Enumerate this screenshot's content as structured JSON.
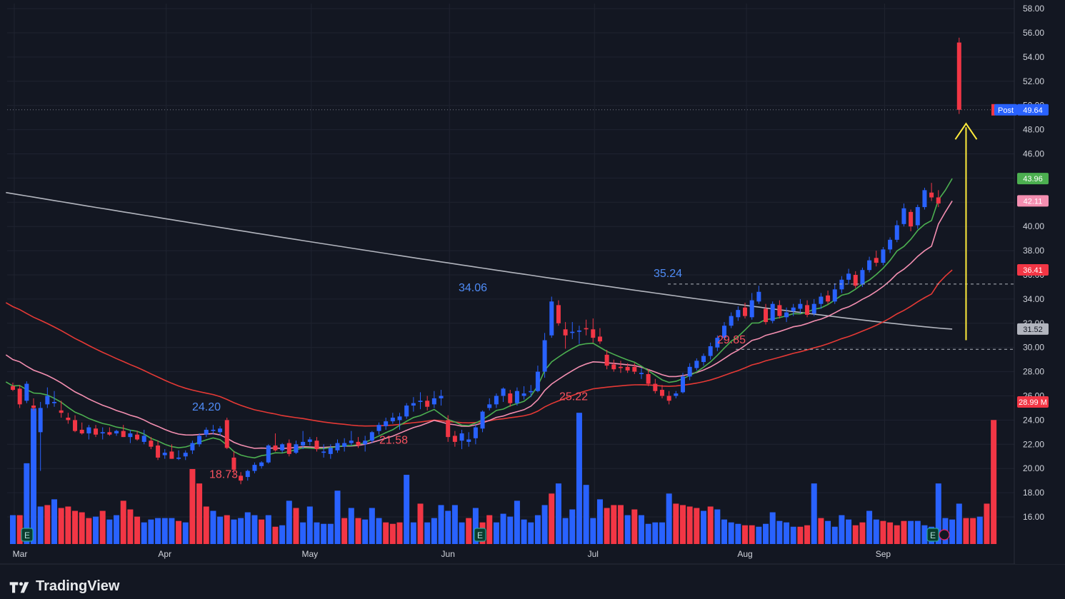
{
  "brand": {
    "name": "TradingView",
    "logo_icon": "tradingview-logo-icon"
  },
  "colors": {
    "background": "#131722",
    "grid": "#1f2330",
    "up": "#2962ff",
    "down": "#f23645",
    "ema_fast": "#4caf50",
    "ema_mid": "#f48fb1",
    "ema_slow": "#e53935",
    "sma_long": "#b2b5be",
    "arrow": "#ffeb3b",
    "post_tag": "#2962ff"
  },
  "chart_data": {
    "type": "candlestick",
    "y_range": [
      14.5,
      59
    ],
    "y_ticks": [
      "16.00",
      "18.00",
      "20.00",
      "22.00",
      "24.00",
      "26.00",
      "28.00",
      "30.00",
      "32.00",
      "34.00",
      "36.00",
      "38.00",
      "40.00",
      "42.00",
      "44.00",
      "46.00",
      "48.00",
      "50.00",
      "52.00",
      "54.00",
      "56.00",
      "58.00"
    ],
    "x_months": [
      {
        "label": "Mar",
        "index": 0
      },
      {
        "label": "Apr",
        "index": 22
      },
      {
        "label": "May",
        "index": 43
      },
      {
        "label": "Jun",
        "index": 63
      },
      {
        "label": "Jul",
        "index": 84
      },
      {
        "label": "Aug",
        "index": 106
      },
      {
        "label": "Sep",
        "index": 126
      }
    ],
    "candles": [
      [
        26.8,
        27.1,
        26.4,
        26.5
      ],
      [
        26.6,
        26.9,
        25.0,
        25.3
      ],
      [
        25.6,
        27.2,
        25.4,
        27.0
      ],
      [
        25.2,
        25.8,
        24.8,
        25.0
      ],
      [
        23.0,
        25.5,
        19.8,
        25.0
      ],
      [
        25.3,
        26.7,
        25.0,
        26.0
      ],
      [
        25.4,
        26.4,
        25.1,
        25.5
      ],
      [
        24.8,
        25.6,
        24.2,
        24.6
      ],
      [
        24.2,
        24.6,
        23.7,
        24.0
      ],
      [
        24.0,
        24.4,
        23.0,
        23.1
      ],
      [
        23.2,
        23.8,
        22.8,
        22.9
      ],
      [
        22.9,
        23.6,
        22.4,
        23.4
      ],
      [
        23.3,
        23.6,
        22.6,
        22.8
      ],
      [
        22.9,
        23.4,
        22.4,
        23.0
      ],
      [
        23.0,
        23.4,
        22.7,
        22.8
      ],
      [
        22.9,
        23.2,
        22.7,
        23.1
      ],
      [
        23.1,
        23.6,
        22.6,
        22.6
      ],
      [
        22.6,
        23.2,
        22.1,
        22.9
      ],
      [
        22.8,
        23.1,
        22.3,
        22.4
      ],
      [
        22.2,
        23.2,
        22.0,
        22.7
      ],
      [
        22.3,
        22.6,
        21.6,
        21.8
      ],
      [
        21.9,
        22.3,
        20.7,
        20.9
      ],
      [
        21.1,
        21.6,
        20.8,
        21.3
      ],
      [
        21.4,
        22.0,
        20.8,
        20.8
      ],
      [
        20.8,
        21.5,
        20.7,
        20.9
      ],
      [
        21.0,
        21.5,
        20.7,
        21.3
      ],
      [
        21.5,
        22.3,
        21.2,
        22.1
      ],
      [
        22.0,
        22.9,
        21.8,
        22.7
      ],
      [
        22.8,
        23.4,
        22.6,
        23.2
      ],
      [
        23.1,
        23.6,
        22.8,
        23.2
      ],
      [
        23.0,
        23.5,
        22.7,
        23.3
      ],
      [
        24.0,
        24.2,
        21.6,
        21.7
      ],
      [
        20.9,
        21.4,
        19.4,
        19.9
      ],
      [
        19.4,
        19.7,
        18.7,
        19.0
      ],
      [
        19.3,
        19.9,
        19.0,
        19.8
      ],
      [
        19.8,
        20.5,
        19.6,
        20.3
      ],
      [
        20.2,
        20.6,
        20.0,
        20.5
      ],
      [
        20.5,
        22.0,
        20.4,
        21.9
      ],
      [
        21.9,
        22.9,
        21.4,
        21.5
      ],
      [
        21.5,
        22.1,
        21.3,
        22.0
      ],
      [
        22.1,
        22.4,
        21.0,
        21.2
      ],
      [
        21.3,
        22.3,
        21.2,
        22.0
      ],
      [
        21.9,
        23.1,
        21.6,
        22.2
      ],
      [
        22.2,
        22.6,
        21.9,
        22.4
      ],
      [
        22.3,
        22.6,
        21.4,
        21.6
      ],
      [
        21.3,
        22.0,
        20.9,
        21.4
      ],
      [
        21.2,
        22.0,
        20.8,
        21.7
      ],
      [
        21.5,
        22.4,
        21.3,
        22.1
      ],
      [
        21.8,
        22.5,
        21.4,
        22.1
      ],
      [
        22.1,
        23.1,
        21.9,
        22.3
      ],
      [
        22.2,
        22.6,
        21.7,
        21.9
      ],
      [
        22.0,
        22.7,
        21.4,
        22.3
      ],
      [
        22.3,
        23.1,
        22.1,
        23.0
      ],
      [
        23.1,
        23.8,
        22.8,
        23.6
      ],
      [
        23.5,
        24.2,
        23.2,
        23.9
      ],
      [
        23.9,
        24.6,
        23.7,
        24.2
      ],
      [
        24.0,
        24.6,
        23.2,
        24.3
      ],
      [
        24.3,
        25.4,
        24.1,
        25.2
      ],
      [
        25.2,
        25.9,
        24.7,
        25.4
      ],
      [
        25.5,
        26.3,
        24.9,
        25.6
      ],
      [
        25.6,
        26.0,
        24.8,
        25.1
      ],
      [
        25.3,
        26.4,
        25.0,
        25.8
      ],
      [
        25.8,
        26.5,
        25.2,
        26.0
      ],
      [
        24.0,
        24.4,
        22.2,
        22.6
      ],
      [
        22.7,
        23.1,
        21.8,
        22.2
      ],
      [
        22.3,
        23.2,
        21.6,
        22.9
      ],
      [
        22.2,
        23.0,
        21.8,
        22.4
      ],
      [
        22.5,
        23.6,
        22.0,
        23.4
      ],
      [
        23.3,
        24.8,
        23.0,
        24.7
      ],
      [
        25.0,
        25.8,
        24.8,
        25.3
      ],
      [
        25.3,
        26.2,
        25.0,
        26.0
      ],
      [
        26.0,
        26.7,
        25.5,
        26.6
      ],
      [
        26.2,
        26.5,
        25.1,
        25.4
      ],
      [
        25.4,
        26.7,
        25.2,
        26.4
      ],
      [
        26.0,
        26.8,
        25.7,
        26.2
      ],
      [
        26.3,
        26.9,
        25.9,
        26.4
      ],
      [
        26.4,
        28.5,
        26.3,
        28.0
      ],
      [
        28.0,
        31.2,
        27.5,
        30.6
      ],
      [
        31.0,
        34.2,
        30.8,
        33.8
      ],
      [
        33.5,
        33.9,
        31.8,
        32.0
      ],
      [
        31.5,
        32.1,
        29.9,
        31.0
      ],
      [
        31.2,
        32.1,
        30.7,
        31.3
      ],
      [
        31.3,
        31.8,
        30.3,
        31.4
      ],
      [
        31.6,
        32.3,
        31.0,
        31.5
      ],
      [
        31.5,
        32.4,
        30.4,
        30.8
      ],
      [
        30.9,
        31.6,
        30.3,
        30.5
      ],
      [
        29.4,
        29.8,
        28.2,
        28.5
      ],
      [
        28.6,
        29.0,
        28.0,
        28.2
      ],
      [
        28.4,
        28.9,
        27.9,
        28.3
      ],
      [
        28.4,
        28.7,
        27.9,
        28.1
      ],
      [
        28.4,
        28.7,
        27.8,
        28.0
      ],
      [
        27.8,
        28.3,
        27.4,
        27.9
      ],
      [
        27.8,
        28.2,
        26.8,
        27.0
      ],
      [
        27.0,
        27.4,
        26.2,
        26.4
      ],
      [
        26.5,
        26.9,
        25.8,
        26.0
      ],
      [
        26.0,
        26.4,
        25.3,
        25.6
      ],
      [
        26.0,
        26.4,
        25.8,
        26.2
      ],
      [
        26.3,
        27.9,
        26.2,
        27.6
      ],
      [
        27.6,
        28.7,
        27.3,
        28.4
      ],
      [
        28.3,
        29.1,
        28.1,
        28.9
      ],
      [
        28.8,
        29.5,
        28.5,
        29.3
      ],
      [
        29.3,
        30.4,
        29.0,
        30.1
      ],
      [
        30.0,
        31.0,
        29.7,
        30.8
      ],
      [
        30.8,
        32.1,
        30.6,
        31.8
      ],
      [
        31.8,
        32.9,
        31.6,
        32.6
      ],
      [
        32.5,
        33.4,
        32.2,
        33.1
      ],
      [
        33.3,
        33.7,
        32.4,
        32.6
      ],
      [
        32.5,
        34.5,
        32.3,
        33.9
      ],
      [
        33.8,
        35.1,
        33.6,
        34.6
      ],
      [
        33.2,
        33.6,
        31.9,
        32.1
      ],
      [
        32.2,
        33.8,
        32.0,
        33.6
      ],
      [
        33.5,
        33.9,
        32.4,
        32.6
      ],
      [
        32.5,
        33.3,
        32.1,
        32.9
      ],
      [
        33.0,
        33.6,
        32.6,
        33.3
      ],
      [
        33.2,
        34.0,
        32.8,
        33.6
      ],
      [
        33.5,
        33.9,
        32.5,
        32.7
      ],
      [
        32.8,
        34.0,
        32.6,
        33.6
      ],
      [
        33.6,
        34.5,
        33.2,
        34.2
      ],
      [
        34.3,
        34.7,
        33.6,
        33.8
      ],
      [
        33.8,
        35.3,
        33.6,
        34.8
      ],
      [
        34.8,
        35.9,
        34.5,
        35.6
      ],
      [
        35.6,
        36.5,
        35.2,
        36.1
      ],
      [
        36.0,
        36.3,
        34.9,
        35.1
      ],
      [
        35.2,
        36.6,
        35.0,
        36.4
      ],
      [
        36.4,
        37.5,
        36.2,
        37.2
      ],
      [
        37.4,
        38.0,
        36.7,
        37.0
      ],
      [
        37.0,
        38.3,
        36.8,
        38.1
      ],
      [
        38.1,
        39.1,
        37.8,
        38.9
      ],
      [
        38.9,
        40.5,
        38.7,
        40.1
      ],
      [
        40.2,
        41.9,
        40.0,
        41.5
      ],
      [
        41.2,
        41.4,
        39.6,
        40.0
      ],
      [
        40.1,
        41.8,
        39.8,
        41.6
      ],
      [
        41.6,
        43.2,
        41.4,
        43.0
      ],
      [
        42.8,
        43.6,
        42.1,
        42.4
      ],
      [
        42.4,
        43.0,
        41.6,
        41.9
      ]
    ],
    "volume": [
      [
        2.0,
        1
      ],
      [
        2.0,
        0
      ],
      [
        5.6,
        1
      ],
      [
        9.4,
        1
      ],
      [
        2.6,
        1
      ],
      [
        2.7,
        0
      ],
      [
        3.1,
        1
      ],
      [
        2.5,
        0
      ],
      [
        2.6,
        0
      ],
      [
        2.3,
        0
      ],
      [
        2.2,
        0
      ],
      [
        1.8,
        0
      ],
      [
        1.9,
        1
      ],
      [
        2.3,
        0
      ],
      [
        1.7,
        1
      ],
      [
        2.0,
        1
      ],
      [
        3.0,
        0
      ],
      [
        2.4,
        0
      ],
      [
        1.9,
        0
      ],
      [
        1.5,
        1
      ],
      [
        1.7,
        1
      ],
      [
        1.8,
        1
      ],
      [
        1.8,
        1
      ],
      [
        1.8,
        1
      ],
      [
        1.6,
        0
      ],
      [
        1.5,
        1
      ],
      [
        5.2,
        0
      ],
      [
        4.2,
        0
      ],
      [
        2.6,
        0
      ],
      [
        2.3,
        1
      ],
      [
        1.9,
        1
      ],
      [
        2.0,
        0
      ],
      [
        1.7,
        1
      ],
      [
        1.8,
        1
      ],
      [
        2.2,
        1
      ],
      [
        2.0,
        1
      ],
      [
        1.7,
        0
      ],
      [
        2.0,
        1
      ],
      [
        1.2,
        0
      ],
      [
        1.3,
        1
      ],
      [
        3.0,
        1
      ],
      [
        2.5,
        0
      ],
      [
        1.5,
        1
      ],
      [
        2.6,
        1
      ],
      [
        1.5,
        1
      ],
      [
        1.4,
        1
      ],
      [
        1.4,
        1
      ],
      [
        3.7,
        1
      ],
      [
        1.8,
        0
      ],
      [
        2.5,
        1
      ],
      [
        1.8,
        0
      ],
      [
        1.7,
        1
      ],
      [
        2.5,
        1
      ],
      [
        1.8,
        1
      ],
      [
        1.5,
        0
      ],
      [
        1.4,
        0
      ],
      [
        1.5,
        0
      ],
      [
        4.8,
        1
      ],
      [
        1.5,
        1
      ],
      [
        2.8,
        0
      ],
      [
        1.5,
        1
      ],
      [
        1.8,
        1
      ],
      [
        2.7,
        1
      ],
      [
        2.3,
        1
      ],
      [
        2.7,
        1
      ],
      [
        1.5,
        1
      ],
      [
        1.8,
        0
      ],
      [
        2.5,
        1
      ],
      [
        1.5,
        0
      ],
      [
        2.0,
        0
      ],
      [
        1.5,
        1
      ],
      [
        2.1,
        1
      ],
      [
        1.9,
        1
      ],
      [
        3.0,
        1
      ],
      [
        1.7,
        1
      ],
      [
        1.5,
        1
      ],
      [
        2.0,
        1
      ],
      [
        2.7,
        1
      ],
      [
        3.5,
        0
      ],
      [
        4.2,
        1
      ],
      [
        1.8,
        1
      ],
      [
        2.4,
        1
      ],
      [
        9.1,
        1
      ],
      [
        4.1,
        1
      ],
      [
        1.8,
        1
      ],
      [
        3.1,
        1
      ],
      [
        2.5,
        0
      ],
      [
        2.7,
        0
      ],
      [
        2.7,
        0
      ],
      [
        2.0,
        1
      ],
      [
        2.4,
        0
      ],
      [
        2.0,
        1
      ],
      [
        1.4,
        1
      ],
      [
        1.5,
        1
      ],
      [
        1.5,
        1
      ],
      [
        3.5,
        1
      ],
      [
        2.8,
        0
      ],
      [
        2.7,
        0
      ],
      [
        2.6,
        0
      ],
      [
        2.5,
        0
      ],
      [
        2.3,
        1
      ],
      [
        2.6,
        0
      ],
      [
        2.4,
        1
      ],
      [
        1.7,
        1
      ],
      [
        1.5,
        1
      ],
      [
        1.4,
        1
      ],
      [
        1.3,
        0
      ],
      [
        1.3,
        0
      ],
      [
        1.2,
        1
      ],
      [
        1.4,
        1
      ],
      [
        2.2,
        1
      ],
      [
        1.6,
        1
      ],
      [
        1.5,
        1
      ],
      [
        1.2,
        1
      ],
      [
        1.2,
        0
      ],
      [
        1.3,
        0
      ],
      [
        4.2,
        1
      ],
      [
        1.8,
        0
      ],
      [
        1.6,
        1
      ],
      [
        1.2,
        1
      ],
      [
        2.0,
        1
      ],
      [
        1.7,
        1
      ],
      [
        1.3,
        0
      ],
      [
        1.5,
        0
      ],
      [
        2.3,
        1
      ],
      [
        1.7,
        1
      ],
      [
        1.6,
        0
      ],
      [
        1.5,
        0
      ],
      [
        1.3,
        0
      ],
      [
        1.6,
        0
      ],
      [
        1.6,
        1
      ],
      [
        1.6,
        1
      ],
      [
        1.3,
        1
      ],
      [
        1.2,
        1
      ],
      [
        4.2,
        1
      ],
      [
        1.8,
        1
      ],
      [
        1.7,
        1
      ],
      [
        2.8,
        1
      ],
      [
        1.8,
        0
      ],
      [
        1.8,
        0
      ]
    ],
    "volume_note": "volume bars follow candle index (value in millions, 1 = up/blue, 0 = down/red)",
    "last_candle": {
      "open": 55.2,
      "high": 55.6,
      "low": 49.3,
      "close": 49.64
    },
    "last_volume": [
      1.9,
      2.8,
      8.6
    ],
    "indicators": {
      "ema_fast_last": 43.96,
      "ema_mid_last": 42.11,
      "ema_slow_last": 36.41,
      "sma_long_last": 31.52
    },
    "price_labels": [
      {
        "text": "49.64",
        "tag": "Post",
        "value": 49.64,
        "color": "#2962ff"
      },
      {
        "text": "43.96",
        "value": 43.96,
        "color": "#4caf50"
      },
      {
        "text": "42.11",
        "value": 42.11,
        "color": "#f48fb1"
      },
      {
        "text": "36.41",
        "value": 36.41,
        "color": "#f23645"
      },
      {
        "text": "31.52",
        "value": 31.52,
        "color": "#b2b5be"
      },
      {
        "text": "28.99 M",
        "value": 28.99,
        "color": "#f23645"
      }
    ],
    "annotations": [
      {
        "text": "24.20",
        "color": "#4f8cf7"
      },
      {
        "text": "18.73",
        "color": "#f7525f"
      },
      {
        "text": "21.58",
        "color": "#f7525f"
      },
      {
        "text": "34.06",
        "color": "#4f8cf7"
      },
      {
        "text": "25.22",
        "color": "#f7525f"
      },
      {
        "text": "35.24",
        "color": "#4f8cf7"
      },
      {
        "text": "29.85",
        "color": "#f7525f"
      }
    ],
    "earnings_markers": [
      "E",
      "E",
      "E"
    ]
  }
}
